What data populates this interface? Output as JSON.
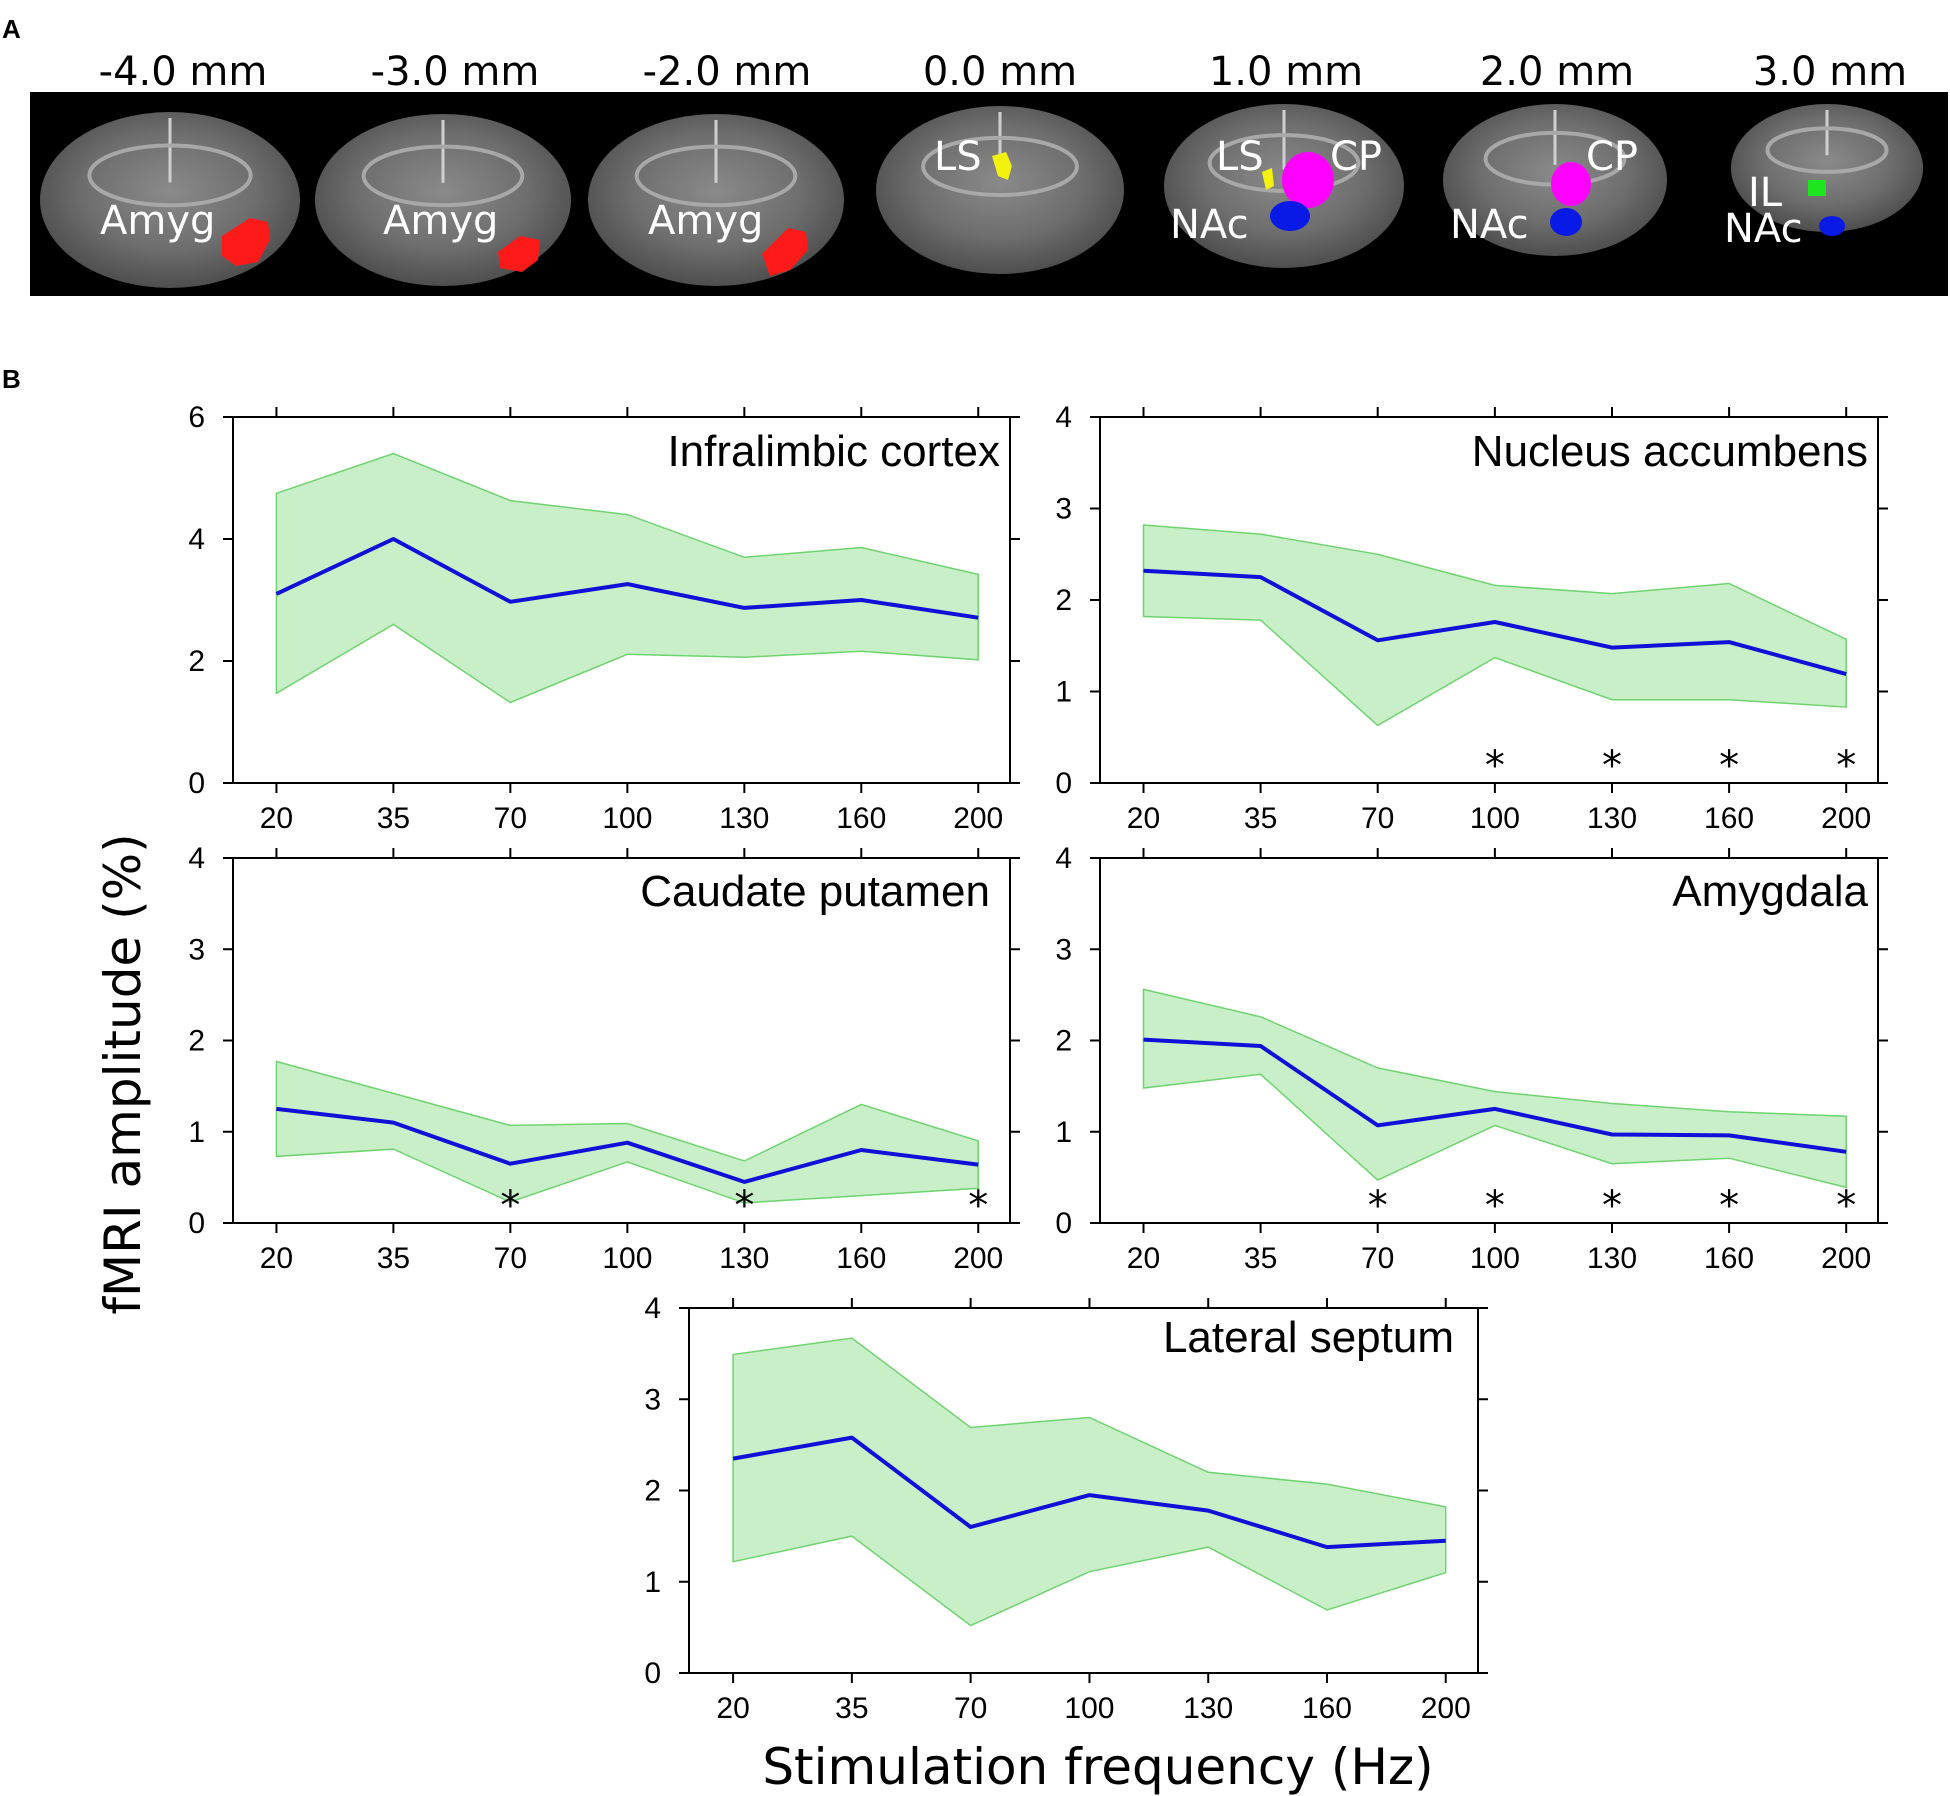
{
  "panel_labels": {
    "a": "A",
    "b": "B"
  },
  "brain_slices": [
    {
      "mm": "-4.0 mm",
      "labels": [
        "Amyg"
      ]
    },
    {
      "mm": "-3.0 mm",
      "labels": [
        "Amyg"
      ]
    },
    {
      "mm": "-2.0 mm",
      "labels": [
        "Amyg"
      ]
    },
    {
      "mm": "0.0 mm",
      "labels": [
        "LS"
      ]
    },
    {
      "mm": "1.0 mm",
      "labels": [
        "LS",
        "CP",
        "NAc"
      ]
    },
    {
      "mm": "2.0 mm",
      "labels": [
        "CP",
        "NAc"
      ]
    },
    {
      "mm": "3.0 mm",
      "labels": [
        "IL",
        "NAc"
      ]
    }
  ],
  "region_colors": {
    "Amyg": "#ff1a1a",
    "LS": "#f2f20d",
    "CP": "#ff00ff",
    "NAc": "#0a1ae6",
    "IL": "#1ee61e"
  },
  "shared_ylabel": "fMRI amplitude (%)",
  "shared_xlabel": "Stimulation frequency (Hz)",
  "colors": {
    "line": "#1010d8",
    "band_fill": "#c9efc9",
    "band_edge": "#6fd46f"
  },
  "chart_data": [
    {
      "type": "line",
      "title": "Infralimbic cortex",
      "categories": [
        "20",
        "35",
        "70",
        "100",
        "130",
        "160",
        "200"
      ],
      "values": [
        3.1,
        4.0,
        2.97,
        3.26,
        2.87,
        3.0,
        2.71
      ],
      "upper": [
        4.75,
        5.4,
        4.63,
        4.4,
        3.7,
        3.86,
        3.42
      ],
      "lower": [
        1.47,
        2.6,
        1.32,
        2.11,
        2.06,
        2.16,
        2.02
      ],
      "ylim": [
        0,
        6
      ],
      "yticks": [
        "0",
        "2",
        "4",
        "6"
      ],
      "significant": [
        "",
        "",
        "",
        "",
        "",
        "",
        ""
      ]
    },
    {
      "type": "line",
      "title": "Nucleus accumbens",
      "categories": [
        "20",
        "35",
        "70",
        "100",
        "130",
        "160",
        "200"
      ],
      "values": [
        2.32,
        2.25,
        1.56,
        1.76,
        1.48,
        1.54,
        1.19
      ],
      "upper": [
        2.82,
        2.72,
        2.5,
        2.16,
        2.07,
        2.18,
        1.57
      ],
      "lower": [
        1.82,
        1.78,
        0.63,
        1.37,
        0.91,
        0.91,
        0.83
      ],
      "ylim": [
        0,
        4
      ],
      "yticks": [
        "0",
        "1",
        "2",
        "3",
        "4"
      ],
      "significant": [
        "",
        "",
        "",
        "*",
        "*",
        "*",
        "*"
      ]
    },
    {
      "type": "line",
      "title": "Caudate putamen",
      "categories": [
        "20",
        "35",
        "70",
        "100",
        "130",
        "160",
        "200"
      ],
      "values": [
        1.25,
        1.1,
        0.65,
        0.88,
        0.45,
        0.8,
        0.64
      ],
      "upper": [
        1.77,
        1.42,
        1.07,
        1.09,
        0.68,
        1.3,
        0.9
      ],
      "lower": [
        0.73,
        0.81,
        0.23,
        0.67,
        0.22,
        0.3,
        0.38
      ],
      "ylim": [
        0,
        4
      ],
      "yticks": [
        "0",
        "1",
        "2",
        "3",
        "4"
      ],
      "significant": [
        "",
        "",
        "*",
        "",
        "*",
        "",
        "*"
      ]
    },
    {
      "type": "line",
      "title": "Amygdala",
      "categories": [
        "20",
        "35",
        "70",
        "100",
        "130",
        "160",
        "200"
      ],
      "values": [
        2.01,
        1.94,
        1.07,
        1.25,
        0.97,
        0.96,
        0.78
      ],
      "upper": [
        2.56,
        2.26,
        1.7,
        1.44,
        1.31,
        1.22,
        1.17
      ],
      "lower": [
        1.48,
        1.63,
        0.47,
        1.07,
        0.65,
        0.71,
        0.39
      ],
      "ylim": [
        0,
        4
      ],
      "yticks": [
        "0",
        "1",
        "2",
        "3",
        "4"
      ],
      "significant": [
        "",
        "",
        "*",
        "*",
        "*",
        "*",
        "*"
      ]
    },
    {
      "type": "line",
      "title": "Lateral septum",
      "categories": [
        "20",
        "35",
        "70",
        "100",
        "130",
        "160",
        "200"
      ],
      "values": [
        2.35,
        2.58,
        1.6,
        1.95,
        1.78,
        1.38,
        1.45
      ],
      "upper": [
        3.49,
        3.67,
        2.69,
        2.8,
        2.2,
        2.07,
        1.82
      ],
      "lower": [
        1.22,
        1.5,
        0.52,
        1.11,
        1.38,
        0.69,
        1.1
      ],
      "ylim": [
        0,
        4
      ],
      "yticks": [
        "0",
        "1",
        "2",
        "3",
        "4"
      ],
      "significant": [
        "",
        "",
        "",
        "",
        "",
        "",
        ""
      ]
    }
  ]
}
